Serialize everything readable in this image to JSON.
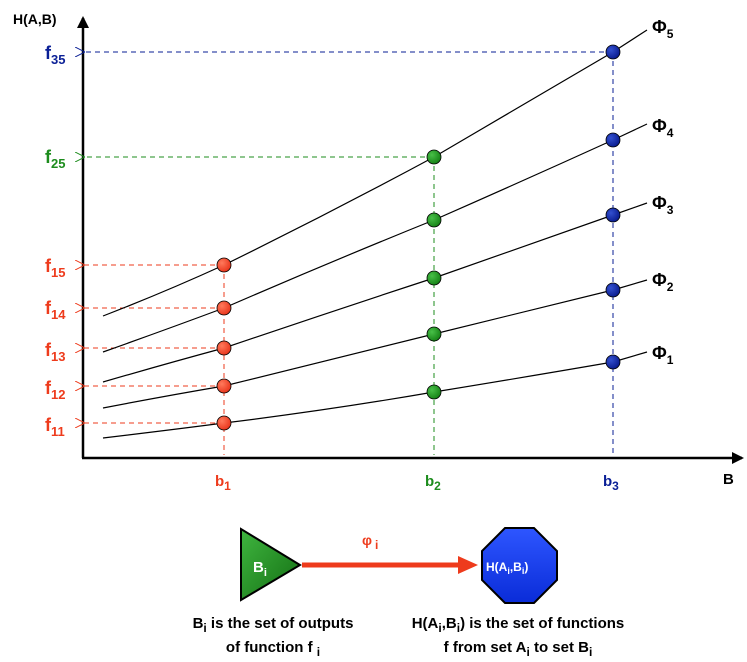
{
  "axes": {
    "y_label": "H(A,B)",
    "x_label": "B"
  },
  "colors": {
    "red": "#ee3b1c",
    "green": "#1c8c1c",
    "blue": "#0a1f96",
    "axis": "#000000"
  },
  "curves": [
    {
      "name": "Φ",
      "sub": "1"
    },
    {
      "name": "Φ",
      "sub": "2"
    },
    {
      "name": "Φ",
      "sub": "3"
    },
    {
      "name": "Φ",
      "sub": "4"
    },
    {
      "name": "Φ",
      "sub": "5"
    }
  ],
  "x_ticks": [
    {
      "name": "b",
      "sub": "1"
    },
    {
      "name": "b",
      "sub": "2"
    },
    {
      "name": "b",
      "sub": "3"
    }
  ],
  "y_ticks": [
    {
      "name": "f",
      "sub": "11"
    },
    {
      "name": "f",
      "sub": "12"
    },
    {
      "name": "f",
      "sub": "13"
    },
    {
      "name": "f",
      "sub": "14"
    },
    {
      "name": "f",
      "sub": "15"
    },
    {
      "name": "f",
      "sub": "25"
    },
    {
      "name": "f",
      "sub": "35"
    }
  ],
  "mapping": {
    "source": {
      "name": "B",
      "sub": "i"
    },
    "arrow": {
      "name": "φ",
      "sub": "i"
    },
    "target": {
      "pre": "H(A",
      "sub1": "i",
      "mid": ",B",
      "sub2": "i",
      "post": ")"
    }
  },
  "descriptions": {
    "source": {
      "l1_name": "B",
      "l1_sub": "i",
      "l1_rest": " is the set of outputs",
      "l2_pre": "of function f",
      "l2_sub": "i"
    },
    "target": {
      "l1_pre": "H(A",
      "l1_sub1": "i",
      "l1_mid": ",B",
      "l1_sub2": "i",
      "l1_rest": ") is the set of functions",
      "l2_pre": "f from set A",
      "l2_sub1": "i",
      "l2_mid": " to set B",
      "l2_sub2": "i"
    }
  }
}
